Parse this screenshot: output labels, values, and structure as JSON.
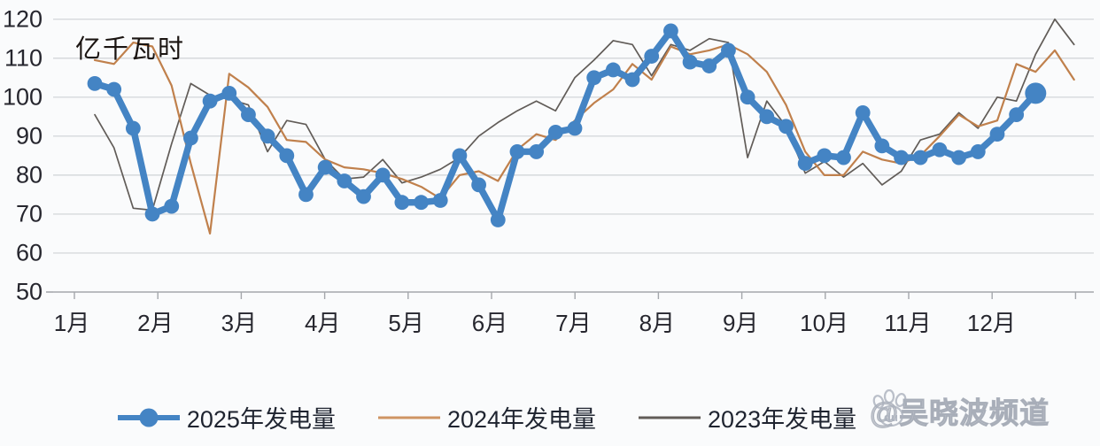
{
  "unit_label": "亿千瓦时",
  "y_axis": {
    "min": 50,
    "max": 120,
    "step": 10,
    "labels": [
      "120",
      "110",
      "100",
      "90",
      "80",
      "70",
      "60",
      "50"
    ]
  },
  "x_axis": {
    "labels": [
      "1月",
      "2月",
      "3月",
      "4月",
      "5月",
      "6月",
      "7月",
      "8月",
      "9月",
      "10月",
      "11月",
      "12月"
    ]
  },
  "legend": {
    "items": [
      {
        "label": "2025年发电量",
        "color": "#4484c4",
        "type": "line-marker"
      },
      {
        "label": "2024年发电量",
        "color": "#cf9463",
        "type": "line"
      },
      {
        "label": "2023年发电量",
        "color": "#615c58",
        "type": "line"
      }
    ]
  },
  "watermark": {
    "icon": "baidu-paw-icon",
    "badge": "du",
    "text": "@吴晓波频道"
  },
  "colors": {
    "grid": "#d6d9dc",
    "axis": "#a4a7ab",
    "series_2025": "#4484c4",
    "series_2024": "#c0804c",
    "series_2023": "#615c58"
  },
  "chart_data": {
    "type": "line",
    "title": "",
    "ylabel": "亿千瓦时",
    "ylim": [
      50,
      120
    ],
    "grid": "horizontal",
    "legend_position": "bottom",
    "x_unit": "week (4-5 points per month, Jan–Dec)",
    "categories_months": [
      "1月",
      "2月",
      "3月",
      "4月",
      "5月",
      "6月",
      "7月",
      "8月",
      "9月",
      "10月",
      "11月",
      "12月"
    ],
    "series": [
      {
        "name": "2025年发电量",
        "style": "thick-line-with-markers",
        "values": [
          103.5,
          102,
          92,
          70,
          72,
          89.5,
          99,
          101,
          95.5,
          90,
          85,
          75,
          82,
          78.5,
          74.5,
          80,
          73,
          73,
          73.5,
          85,
          77.5,
          68.5,
          86,
          86,
          91,
          92,
          105,
          107,
          104.5,
          110.5,
          117,
          109,
          108,
          112,
          100,
          95,
          92.5,
          83,
          85,
          84.5,
          96,
          87.5,
          84.5,
          84.5,
          86.5,
          84.5,
          86,
          90.5,
          95.5,
          101
        ]
      },
      {
        "name": "2024年发电量",
        "style": "thin-line",
        "values": [
          109.5,
          108.5,
          114,
          113,
          103,
          83,
          65,
          106,
          102.5,
          97.5,
          89,
          88.5,
          84,
          82,
          81.5,
          80.5,
          79,
          77,
          74,
          80,
          81,
          78.5,
          86.5,
          90.5,
          89,
          94,
          98.5,
          102,
          108.5,
          104.5,
          113,
          111,
          112,
          113.5,
          111,
          106.5,
          98,
          86,
          80,
          80,
          86,
          84,
          83,
          85,
          90,
          95.5,
          92.5,
          94,
          108.5,
          106.5,
          112,
          104.5
        ]
      },
      {
        "name": "2023年发电量",
        "style": "thin-line",
        "values": [
          95.5,
          87,
          71.5,
          71,
          88,
          103.5,
          100.5,
          99.5,
          98,
          86,
          94,
          93,
          84,
          79,
          79.5,
          84,
          78,
          79.5,
          81.5,
          84.5,
          90,
          93.5,
          96.5,
          99,
          96.5,
          105,
          109.5,
          114.5,
          113.5,
          105.5,
          113.5,
          112,
          115,
          114,
          84.5,
          99,
          92.5,
          80.5,
          83.5,
          79.5,
          83,
          77.5,
          81,
          89,
          90.5,
          96,
          92,
          100,
          99,
          111,
          120,
          113.5
        ]
      }
    ]
  }
}
